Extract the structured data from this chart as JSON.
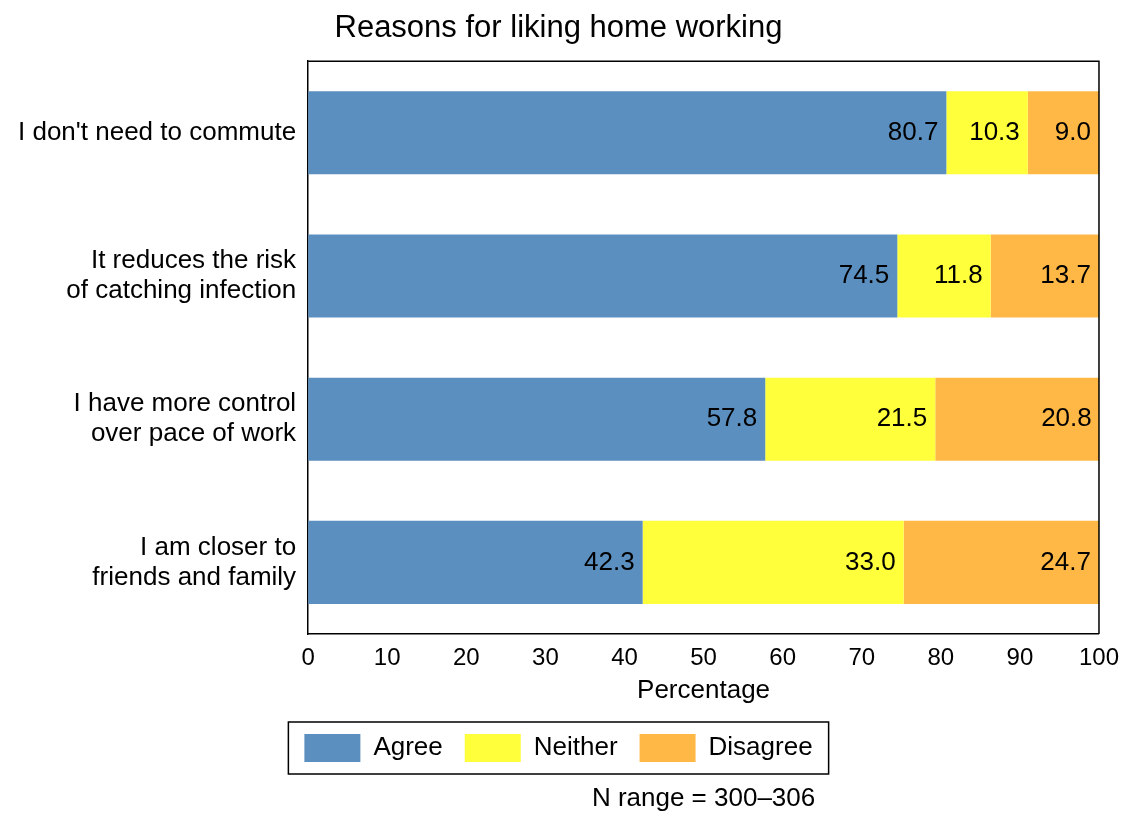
{
  "chart_data": {
    "type": "bar",
    "orientation": "horizontal",
    "stacked": true,
    "title": "Reasons for liking home working",
    "xlabel": "Percentage",
    "categories": [
      "I don't need to commute",
      "It reduces the risk\nof catching infection",
      "I have more control\nover pace of work",
      "I am closer to\nfriends and family"
    ],
    "series": [
      {
        "name": "Agree",
        "color": "#5b8fbf",
        "values": [
          80.7,
          74.5,
          57.8,
          42.3
        ],
        "value_labels": [
          "80.7",
          "74.5",
          "57.8",
          "42.3"
        ]
      },
      {
        "name": "Neither",
        "color": "#ffff3c",
        "values": [
          10.3,
          11.8,
          21.5,
          33
        ],
        "value_labels": [
          "10.3",
          "11.8",
          "21.5",
          "33.0"
        ]
      },
      {
        "name": "Disagree",
        "color": "#ffb846",
        "values": [
          9,
          13.7,
          20.8,
          24.7
        ],
        "value_labels": [
          "9.0",
          "13.7",
          "20.8",
          "24.7"
        ]
      }
    ],
    "xlim": [
      0,
      100
    ],
    "xticks": [
      0,
      10,
      20,
      30,
      40,
      50,
      60,
      70,
      80,
      90,
      100
    ],
    "grid": false,
    "legend": "bottom",
    "annotations": [
      "N range = 300–306"
    ]
  }
}
